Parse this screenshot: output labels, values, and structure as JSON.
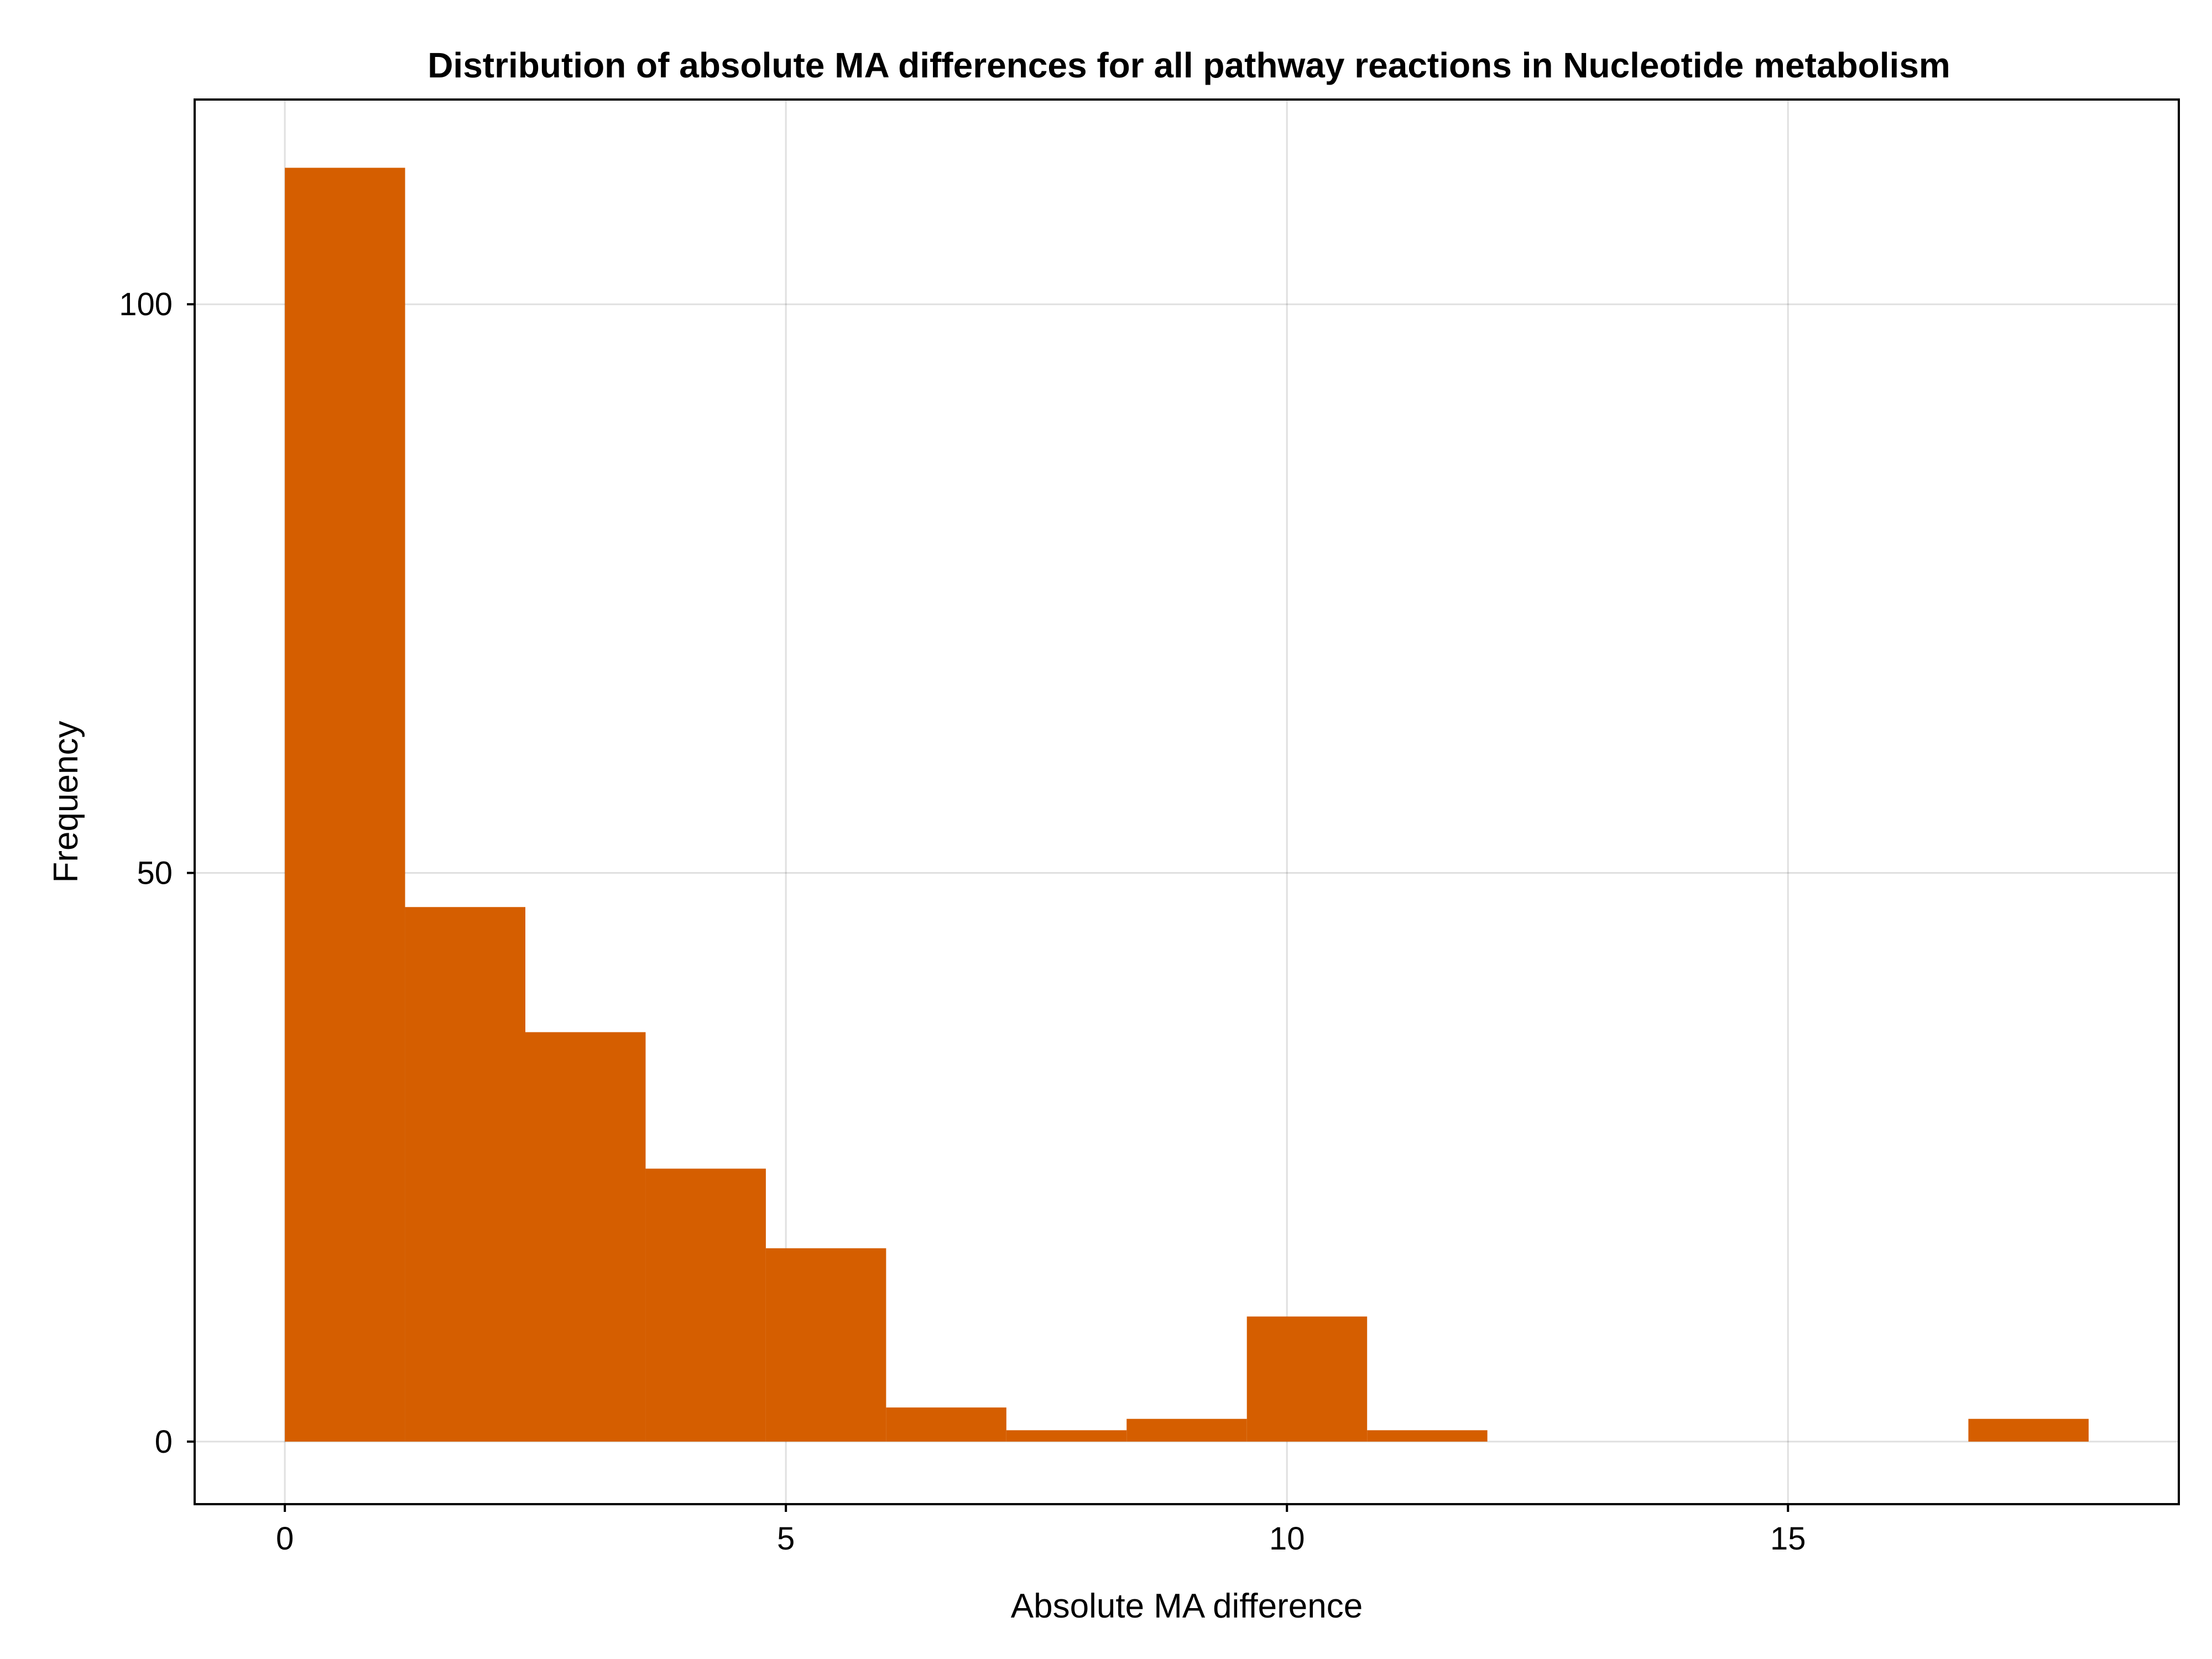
{
  "chart_data": {
    "type": "bar",
    "title": "Distribution of absolute MA differences for all pathway reactions in Nucleotide metabolism",
    "xlabel": "Absolute MA difference",
    "ylabel": "Frequency",
    "bin_edges": [
      0,
      1.2,
      2.4,
      3.6,
      4.8,
      6.0,
      7.2,
      8.4,
      9.6,
      10.8,
      12.0,
      13.2,
      14.4,
      15.6,
      16.8,
      18.0
    ],
    "counts": [
      112,
      47,
      36,
      24,
      17,
      3,
      1,
      2,
      11,
      1,
      0,
      0,
      0,
      0,
      2
    ],
    "xticks": [
      0,
      5,
      10,
      15
    ],
    "yticks": [
      0,
      50,
      100
    ],
    "xlim": [
      -0.9,
      18.9
    ],
    "ylim": [
      -5.5,
      118
    ],
    "grid": true,
    "bar_color": "#d55e00"
  }
}
